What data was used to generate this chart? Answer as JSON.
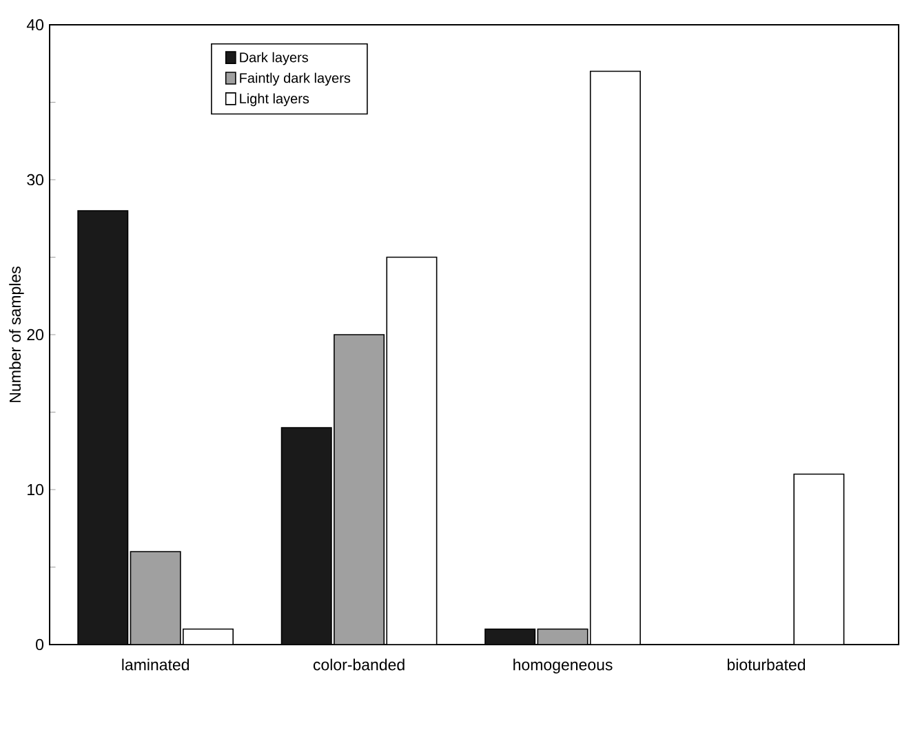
{
  "chart_data": {
    "type": "bar",
    "ylabel": "Number of samples",
    "categories": [
      "laminated",
      "color-banded",
      "homogeneous",
      "bioturbated"
    ],
    "series": [
      {
        "name": "Dark layers",
        "color": "#1a1a1a",
        "values": [
          28,
          14,
          1,
          0
        ]
      },
      {
        "name": "Faintly dark layers",
        "color": "#a0a0a0",
        "values": [
          6,
          20,
          1,
          0
        ]
      },
      {
        "name": "Light layers",
        "color": "#ffffff",
        "values": [
          1,
          25,
          37,
          11
        ]
      }
    ],
    "ylim": [
      0,
      40
    ],
    "yticks": [
      0,
      {
        "value": 5,
        "label": null
      },
      10,
      {
        "value": 15,
        "label": null
      },
      20,
      {
        "value": 25,
        "label": null
      },
      30,
      {
        "value": 35,
        "label": null
      },
      40
    ],
    "grid": false,
    "legend": "top left"
  }
}
